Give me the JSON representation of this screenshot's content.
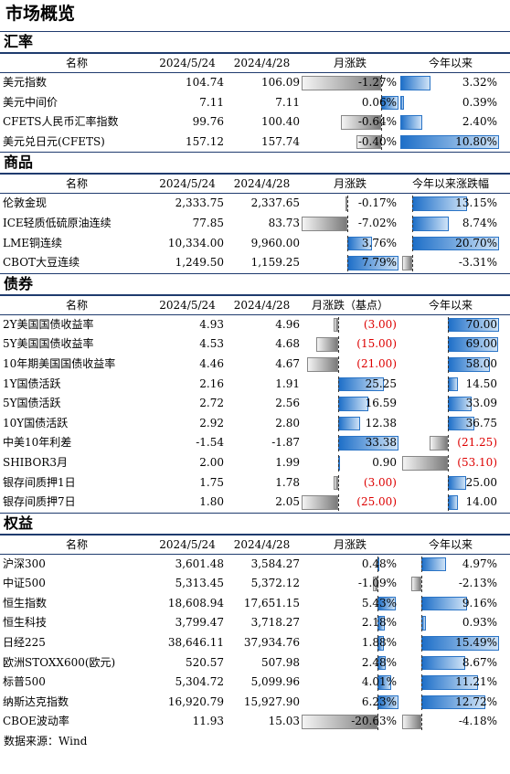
{
  "title": "市场概览",
  "source": "数据来源：Wind",
  "sections": [
    {
      "name": "汇率",
      "headers": [
        "名称",
        "2024/5/24",
        "2024/4/28",
        "月涨跌",
        "今年以来"
      ],
      "zero_m": 0.81,
      "zero_y": 0.0,
      "rows": [
        {
          "name": "美元指数",
          "v1": "104.74",
          "v2": "106.09",
          "m": "-1.27%",
          "mv": -1.27,
          "y": "3.32%",
          "yv": 3.32
        },
        {
          "name": "美元中间价",
          "v1": "7.11",
          "v2": "7.11",
          "m": "0.06%",
          "mv": 0.06,
          "y": "0.39%",
          "yv": 0.39
        },
        {
          "name": "CFETS人民币汇率指数",
          "v1": "99.76",
          "v2": "100.40",
          "m": "-0.64%",
          "mv": -0.64,
          "y": "2.40%",
          "yv": 2.4
        },
        {
          "name": "美元兑日元(CFETS)",
          "v1": "157.12",
          "v2": "157.74",
          "m": "-0.40%",
          "mv": -0.4,
          "y": "10.80%",
          "yv": 10.8
        }
      ]
    },
    {
      "name": "商品",
      "headers": [
        "名称",
        "2024/5/24",
        "2024/4/28",
        "月涨跌",
        "今年以来涨跌幅"
      ],
      "zero_m": 0.47,
      "zero_y": 0.12,
      "rows": [
        {
          "name": "伦敦金现",
          "v1": "2,333.75",
          "v2": "2,337.65",
          "m": "-0.17%",
          "mv": -0.17,
          "y": "13.15%",
          "yv": 13.15
        },
        {
          "name": "ICE轻质低硫原油连续",
          "v1": "77.85",
          "v2": "83.73",
          "m": "-7.02%",
          "mv": -7.02,
          "y": "8.74%",
          "yv": 8.74
        },
        {
          "name": "LME铜连续",
          "v1": "10,334.00",
          "v2": "9,960.00",
          "m": "3.76%",
          "mv": 3.76,
          "y": "20.70%",
          "yv": 20.7
        },
        {
          "name": "CBOT大豆连续",
          "v1": "1,249.50",
          "v2": "1,159.25",
          "m": "7.79%",
          "mv": 7.79,
          "y": "-3.31%",
          "yv": -3.31
        }
      ]
    },
    {
      "name": "债券",
      "headers": [
        "名称",
        "2024/5/24",
        "2024/4/28",
        "月涨跌（基点）",
        "今年以来"
      ],
      "zero_m": 0.38,
      "zero_y": 0.47,
      "rows": [
        {
          "name": "2Y美国国债收益率",
          "v1": "4.93",
          "v2": "4.96",
          "m": "(3.00)",
          "mv": -3,
          "y": "70.00",
          "yv": 70
        },
        {
          "name": "5Y美国国债收益率",
          "v1": "4.53",
          "v2": "4.68",
          "m": "(15.00)",
          "mv": -15,
          "y": "69.00",
          "yv": 69
        },
        {
          "name": "10年期美国国债收益率",
          "v1": "4.46",
          "v2": "4.67",
          "m": "(21.00)",
          "mv": -21,
          "y": "58.00",
          "yv": 58
        },
        {
          "name": "1Y国债活跃",
          "v1": "2.16",
          "v2": "1.91",
          "m": "25.25",
          "mv": 25.25,
          "y": "14.50",
          "yv": 14.5
        },
        {
          "name": "5Y国债活跃",
          "v1": "2.72",
          "v2": "2.56",
          "m": "16.59",
          "mv": 16.59,
          "y": "33.09",
          "yv": 33.09
        },
        {
          "name": "10Y国债活跃",
          "v1": "2.92",
          "v2": "2.80",
          "m": "12.38",
          "mv": 12.38,
          "y": "36.75",
          "yv": 36.75
        },
        {
          "name": "中美10年利差",
          "v1": "-1.54",
          "v2": "-1.87",
          "m": "33.38",
          "mv": 33.38,
          "y": "(21.25)",
          "yv": -21.25
        },
        {
          "name": "SHIBOR3月",
          "v1": "2.00",
          "v2": "1.99",
          "m": "0.90",
          "mv": 0.9,
          "y": "(53.10)",
          "yv": -53.1
        },
        {
          "name": "银存间质押1日",
          "v1": "1.75",
          "v2": "1.78",
          "m": "(3.00)",
          "mv": -3,
          "y": "25.00",
          "yv": 25
        },
        {
          "name": "银存间质押7日",
          "v1": "1.80",
          "v2": "2.05",
          "m": "(25.00)",
          "mv": -25,
          "y": "14.00",
          "yv": 14
        }
      ]
    },
    {
      "name": "权益",
      "headers": [
        "名称",
        "2024/5/24",
        "2024/4/28",
        "月涨跌",
        "今年以来"
      ],
      "zero_m": 0.77,
      "zero_y": 0.21,
      "rows": [
        {
          "name": "沪深300",
          "v1": "3,601.48",
          "v2": "3,584.27",
          "m": "0.48%",
          "mv": 0.48,
          "y": "4.97%",
          "yv": 4.97
        },
        {
          "name": "中证500",
          "v1": "5,313.45",
          "v2": "5,372.12",
          "m": "-1.09%",
          "mv": -1.09,
          "y": "-2.13%",
          "yv": -2.13
        },
        {
          "name": "恒生指数",
          "v1": "18,608.94",
          "v2": "17,651.15",
          "m": "5.43%",
          "mv": 5.43,
          "y": "9.16%",
          "yv": 9.16
        },
        {
          "name": "恒生科技",
          "v1": "3,799.47",
          "v2": "3,718.27",
          "m": "2.18%",
          "mv": 2.18,
          "y": "0.93%",
          "yv": 0.93
        },
        {
          "name": "日经225",
          "v1": "38,646.11",
          "v2": "37,934.76",
          "m": "1.88%",
          "mv": 1.88,
          "y": "15.49%",
          "yv": 15.49
        },
        {
          "name": "欧洲STOXX600(欧元)",
          "v1": "520.57",
          "v2": "507.98",
          "m": "2.48%",
          "mv": 2.48,
          "y": "8.67%",
          "yv": 8.67
        },
        {
          "name": "标普500",
          "v1": "5,304.72",
          "v2": "5,099.96",
          "m": "4.01%",
          "mv": 4.01,
          "y": "11.21%",
          "yv": 11.21
        },
        {
          "name": "纳斯达克指数",
          "v1": "16,920.79",
          "v2": "15,927.90",
          "m": "6.23%",
          "mv": 6.23,
          "y": "12.72%",
          "yv": 12.72
        },
        {
          "name": "CBOE波动率",
          "v1": "11.93",
          "v2": "15.03",
          "m": "-20.63%",
          "mv": -20.63,
          "y": "-4.18%",
          "yv": -4.18
        }
      ]
    }
  ]
}
